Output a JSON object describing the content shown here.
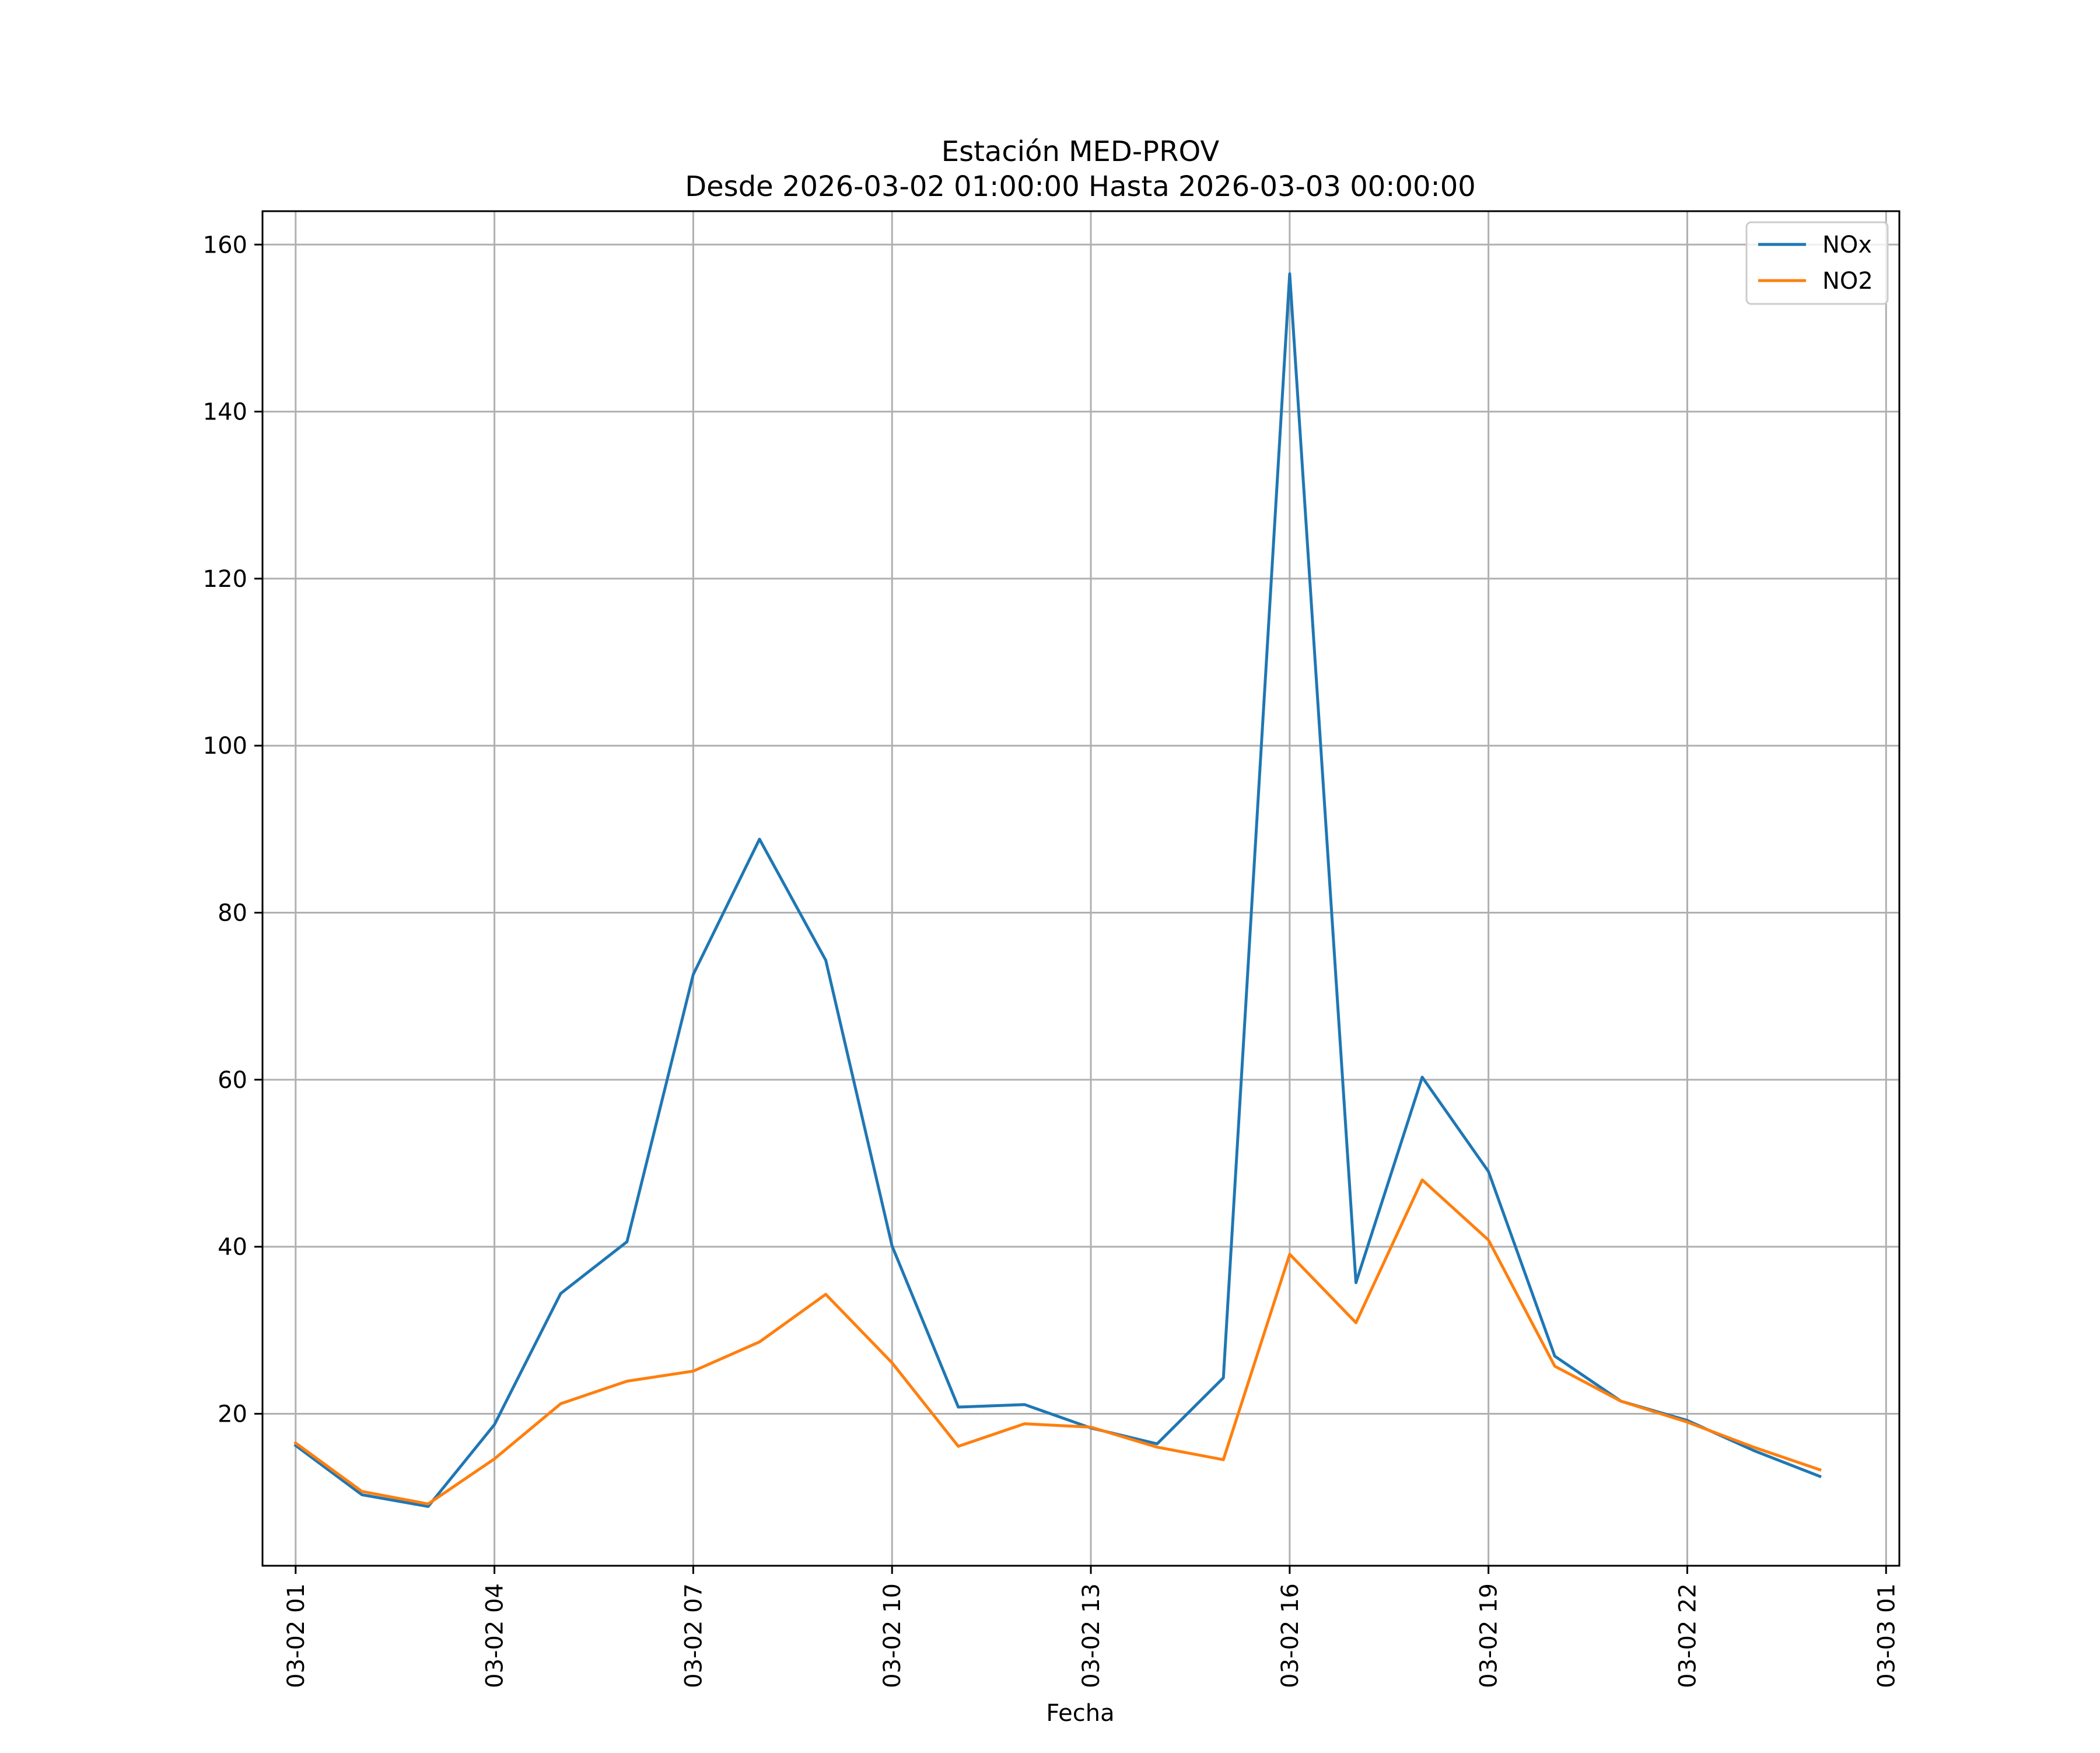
{
  "chart_data": {
    "type": "line",
    "title": "Estación MED-PROV",
    "subtitle": "Desde 2026-03-02 01:00:00 Hasta 2026-03-03 00:00:00",
    "xlabel": "Fecha",
    "ylabel": "",
    "x": [
      "03-02 01",
      "03-02 02",
      "03-02 03",
      "03-02 04",
      "03-02 05",
      "03-02 06",
      "03-02 07",
      "03-02 08",
      "03-02 09",
      "03-02 10",
      "03-02 11",
      "03-02 12",
      "03-02 13",
      "03-02 14",
      "03-02 15",
      "03-02 16",
      "03-02 17",
      "03-02 18",
      "03-02 19",
      "03-02 20",
      "03-02 21",
      "03-02 22",
      "03-02 23",
      "03-03 00"
    ],
    "xlim_hours": [
      -0.5,
      24.2
    ],
    "x_ticks": [
      {
        "hour": 0,
        "label": "03-02 01"
      },
      {
        "hour": 3,
        "label": "03-02 04"
      },
      {
        "hour": 6,
        "label": "03-02 07"
      },
      {
        "hour": 9,
        "label": "03-02 10"
      },
      {
        "hour": 12,
        "label": "03-02 13"
      },
      {
        "hour": 15,
        "label": "03-02 16"
      },
      {
        "hour": 18,
        "label": "03-02 19"
      },
      {
        "hour": 21,
        "label": "03-02 22"
      },
      {
        "hour": 24,
        "label": "03-03 01"
      }
    ],
    "ylim": [
      1.8,
      164
    ],
    "y_ticks": [
      {
        "value": 20,
        "label": "20"
      },
      {
        "value": 40,
        "label": "40"
      },
      {
        "value": 60,
        "label": "60"
      },
      {
        "value": 80,
        "label": "80"
      },
      {
        "value": 100,
        "label": "100"
      },
      {
        "value": 120,
        "label": "120"
      },
      {
        "value": 140,
        "label": "140"
      },
      {
        "value": 160,
        "label": "160"
      }
    ],
    "grid": true,
    "legend_position": "top-right",
    "series": [
      {
        "name": "NOx",
        "color": "#1f77b4",
        "values": [
          16.2,
          10.3,
          8.9,
          18.7,
          34.4,
          40.6,
          72.6,
          88.8,
          74.3,
          40.1,
          20.8,
          21.1,
          18.3,
          16.4,
          24.3,
          156.5,
          35.7,
          60.3,
          49.0,
          26.9,
          21.5,
          19.2,
          15.6,
          12.5
        ]
      },
      {
        "name": "NO2",
        "color": "#ff7f0e",
        "values": [
          16.5,
          10.7,
          9.2,
          14.6,
          21.2,
          23.9,
          25.1,
          28.6,
          34.3,
          26.1,
          16.1,
          18.8,
          18.4,
          16.0,
          14.5,
          39.1,
          30.9,
          48.0,
          40.8,
          25.7,
          21.5,
          19.0,
          16.0,
          13.3
        ]
      }
    ]
  }
}
